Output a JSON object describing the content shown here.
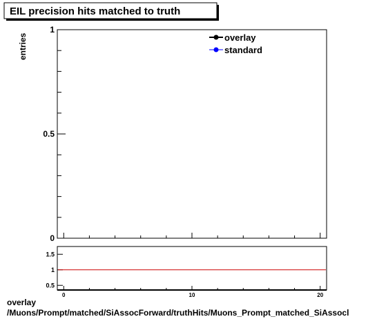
{
  "title": "EIL precision hits matched to truth",
  "footer": {
    "line1": "overlay",
    "line2": "/Muons/Prompt/matched/SiAssocForward/truthHits/Muons_Prompt_matched_SiAssocl"
  },
  "colors": {
    "overlay": "#000000",
    "standard": "#0000ff",
    "ratio_line": "#cc0000"
  },
  "chart_data": [
    {
      "type": "line",
      "ylabel": "entries",
      "xlim": [
        -0.5,
        20.5
      ],
      "ylim": [
        0,
        1
      ],
      "y_ticks": [
        {
          "value": 0,
          "label": "0"
        },
        {
          "value": 0.5,
          "label": "0.5"
        },
        {
          "value": 1,
          "label": "1"
        }
      ],
      "legend": {
        "placement": "top-right",
        "entries": [
          {
            "label": "overlay",
            "color_key": "overlay"
          },
          {
            "label": "standard",
            "color_key": "standard"
          }
        ]
      },
      "series": [
        {
          "name": "overlay",
          "x": [],
          "y": []
        },
        {
          "name": "standard",
          "x": [],
          "y": []
        }
      ]
    },
    {
      "type": "line",
      "xlabel": "",
      "xlim": [
        -0.5,
        20.5
      ],
      "ylim": [
        0.35,
        1.75
      ],
      "x_ticks": [
        {
          "value": 0,
          "label": "0"
        },
        {
          "value": 10,
          "label": "10"
        },
        {
          "value": 20,
          "label": "20"
        }
      ],
      "y_ticks": [
        {
          "value": 0.5,
          "label": "0.5"
        },
        {
          "value": 1,
          "label": "1"
        },
        {
          "value": 1.5,
          "label": "1.5"
        }
      ],
      "reference_line": 1
    }
  ]
}
